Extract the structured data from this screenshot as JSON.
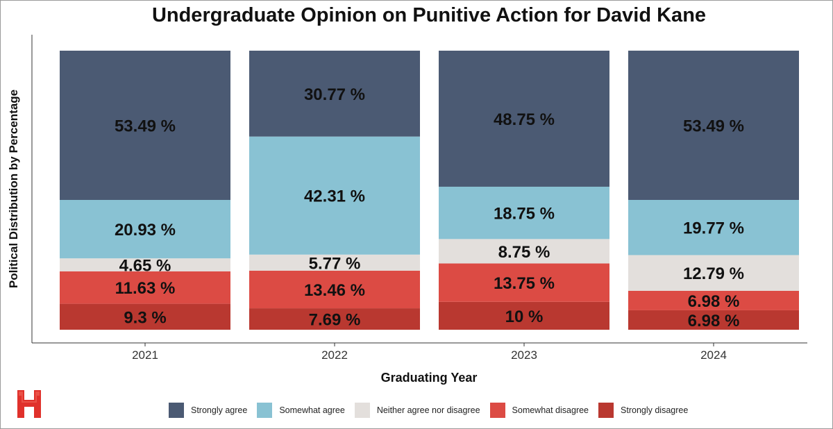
{
  "chart_data": {
    "type": "bar",
    "stacked": true,
    "title": "Undergraduate Opinion on Punitive Action for David Kane",
    "xlabel": "Graduating Year",
    "ylabel": "Political Distribution by Percentage",
    "categories": [
      "2021",
      "2022",
      "2023",
      "2024"
    ],
    "ylim": [
      0,
      100
    ],
    "grid": false,
    "legend_position": "bottom",
    "series": [
      {
        "name": "Strongly disagree",
        "color": "#b93830",
        "values": [
          9.3,
          7.69,
          10,
          6.98
        ],
        "labels": [
          "9.3 %",
          "7.69 %",
          "10 %",
          "6.98 %"
        ]
      },
      {
        "name": "Somewhat disagree",
        "color": "#dc4b44",
        "values": [
          11.63,
          13.46,
          13.75,
          6.98
        ],
        "labels": [
          "11.63 %",
          "13.46 %",
          "13.75 %",
          "6.98 %"
        ]
      },
      {
        "name": "Neither agree nor disagree",
        "color": "#e3dfdc",
        "values": [
          4.65,
          5.77,
          8.75,
          12.79
        ],
        "labels": [
          "4.65 %",
          "5.77 %",
          "8.75 %",
          "12.79 %"
        ]
      },
      {
        "name": "Somewhat agree",
        "color": "#89c2d3",
        "values": [
          20.93,
          42.31,
          18.75,
          19.77
        ],
        "labels": [
          "20.93 %",
          "42.31 %",
          "18.75 %",
          "19.77 %"
        ]
      },
      {
        "name": "Strongly agree",
        "color": "#4b5a73",
        "values": [
          53.49,
          30.77,
          48.75,
          53.49
        ],
        "labels": [
          "53.49 %",
          "30.77 %",
          "48.75 %",
          "53.49 %"
        ]
      }
    ],
    "legend": [
      {
        "name": "Strongly agree",
        "color": "#4b5a73"
      },
      {
        "name": "Somewhat agree",
        "color": "#89c2d3"
      },
      {
        "name": "Neither agree nor disagree",
        "color": "#e3dfdc"
      },
      {
        "name": "Somewhat disagree",
        "color": "#dc4b44"
      },
      {
        "name": "Strongly disagree",
        "color": "#b93830"
      }
    ]
  },
  "logo": {
    "name": "h-logo-icon",
    "color": "#e0312b"
  }
}
